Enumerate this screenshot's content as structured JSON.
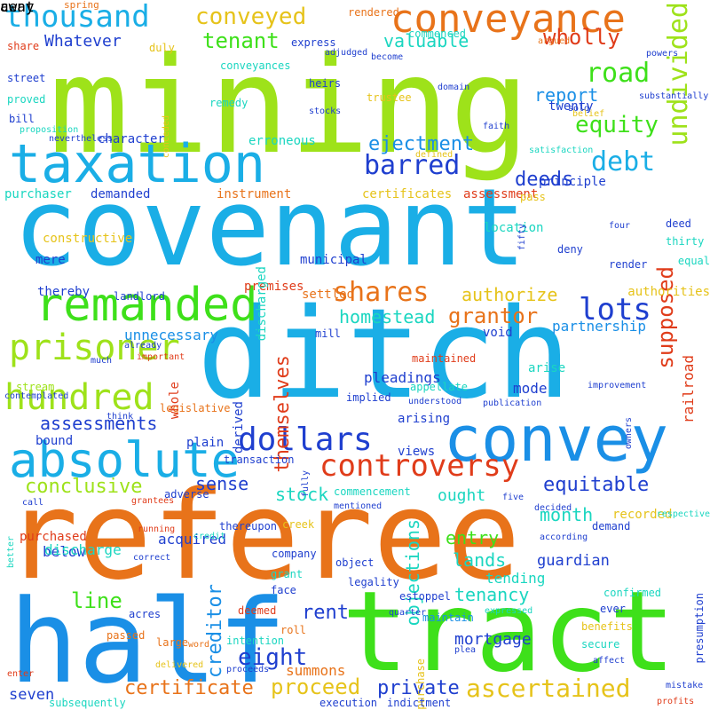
{
  "palette": {
    "cyan": "#1aaee6",
    "blue": "#1f3fcf",
    "lime": "#9ee21a",
    "green": "#3ee01a",
    "orange": "#e8731a",
    "red": "#e03c1a",
    "yellow": "#e6c31a",
    "teal": "#1ad6c0",
    "skyblue": "#1a8fe6"
  },
  "words": [
    {
      "text": "mining",
      "color": "lime"
    },
    {
      "text": "covenant",
      "color": "cyan"
    },
    {
      "text": "referee",
      "color": "orange"
    },
    {
      "text": "ditch",
      "color": "cyan"
    },
    {
      "text": "tract",
      "color": "green"
    },
    {
      "text": "half",
      "color": "skyblue"
    },
    {
      "text": "taxation",
      "color": "cyan"
    },
    {
      "text": "convey",
      "color": "skyblue"
    },
    {
      "text": "conveyance",
      "color": "orange"
    },
    {
      "text": "absolute",
      "color": "cyan"
    },
    {
      "text": "remanded",
      "color": "green"
    },
    {
      "text": "prisoner",
      "color": "lime"
    },
    {
      "text": "hundred",
      "color": "lime"
    },
    {
      "text": "controversy",
      "color": "red"
    },
    {
      "text": "dollars",
      "color": "blue"
    },
    {
      "text": "thousand",
      "color": "cyan"
    },
    {
      "text": "conveyed",
      "color": "yellow"
    },
    {
      "text": "barred",
      "color": "blue"
    },
    {
      "text": "undivided",
      "color": "lime"
    },
    {
      "text": "lots",
      "color": "blue"
    },
    {
      "text": "shares",
      "color": "orange"
    },
    {
      "text": "debt",
      "color": "cyan"
    },
    {
      "text": "road",
      "color": "green"
    },
    {
      "text": "equity",
      "color": "green"
    },
    {
      "text": "supposed",
      "color": "red"
    },
    {
      "text": "ascertained",
      "color": "yellow"
    },
    {
      "text": "proceed",
      "color": "yellow"
    },
    {
      "text": "eight",
      "color": "blue"
    },
    {
      "text": "private",
      "color": "blue"
    },
    {
      "text": "creditor",
      "color": "skyblue"
    },
    {
      "text": "assessments",
      "color": "blue"
    },
    {
      "text": "conclusive",
      "color": "lime"
    },
    {
      "text": "equitable",
      "color": "blue"
    },
    {
      "text": "certificate",
      "color": "orange"
    },
    {
      "text": "line",
      "color": "green"
    },
    {
      "text": "rent",
      "color": "blue"
    },
    {
      "text": "tenant",
      "color": "green"
    },
    {
      "text": "valuable",
      "color": "teal"
    },
    {
      "text": "wholly",
      "color": "red"
    },
    {
      "text": "Whatever",
      "color": "blue"
    },
    {
      "text": "ejectment",
      "color": "skyblue"
    },
    {
      "text": "deeds",
      "color": "blue"
    },
    {
      "text": "grantor",
      "color": "orange"
    },
    {
      "text": "authorize",
      "color": "yellow"
    },
    {
      "text": "report",
      "color": "skyblue"
    },
    {
      "text": "sense",
      "color": "blue"
    },
    {
      "text": "entry",
      "color": "green"
    },
    {
      "text": "lands",
      "color": "teal"
    },
    {
      "text": "month",
      "color": "teal"
    },
    {
      "text": "guardian",
      "color": "blue"
    },
    {
      "text": "tenancy",
      "color": "teal"
    },
    {
      "text": "objections",
      "color": "teal"
    },
    {
      "text": "themselves",
      "color": "red"
    },
    {
      "text": "partnership",
      "color": "skyblue"
    },
    {
      "text": "homestead",
      "color": "teal"
    },
    {
      "text": "ought",
      "color": "teal"
    },
    {
      "text": "stock",
      "color": "teal"
    },
    {
      "text": "summons",
      "color": "orange"
    },
    {
      "text": "mortgage",
      "color": "blue"
    },
    {
      "text": "seven",
      "color": "blue"
    },
    {
      "text": "unnecessary",
      "color": "skyblue"
    },
    {
      "text": "railroad",
      "color": "red"
    },
    {
      "text": "pleadings",
      "color": "blue"
    },
    {
      "text": "mode",
      "color": "blue"
    },
    {
      "text": "tending",
      "color": "teal"
    },
    {
      "text": "below",
      "color": "blue"
    },
    {
      "text": "acquired",
      "color": "blue"
    },
    {
      "text": "discharge",
      "color": "teal"
    },
    {
      "text": "purchased",
      "color": "red"
    },
    {
      "text": "principle",
      "color": "blue"
    },
    {
      "text": "twenty",
      "color": "blue"
    },
    {
      "text": "purchaser",
      "color": "teal"
    },
    {
      "text": "demanded",
      "color": "blue"
    },
    {
      "text": "instrument",
      "color": "orange"
    },
    {
      "text": "certificates",
      "color": "yellow"
    },
    {
      "text": "assessment",
      "color": "red"
    },
    {
      "text": "character",
      "color": "blue"
    },
    {
      "text": "erroneous",
      "color": "teal"
    },
    {
      "text": "commenced",
      "color": "teal"
    },
    {
      "text": "heirs",
      "color": "blue"
    },
    {
      "text": "trustee",
      "color": "yellow"
    },
    {
      "text": "express",
      "color": "blue"
    },
    {
      "text": "conveyances",
      "color": "teal"
    },
    {
      "text": "street",
      "color": "blue"
    },
    {
      "text": "proved",
      "color": "teal"
    },
    {
      "text": "remedy",
      "color": "teal"
    },
    {
      "text": "bill",
      "color": "blue"
    },
    {
      "text": "share",
      "color": "red"
    },
    {
      "text": "duly",
      "color": "yellow"
    },
    {
      "text": "rendered",
      "color": "orange"
    },
    {
      "text": "spring",
      "color": "orange"
    },
    {
      "text": "constructive",
      "color": "yellow"
    },
    {
      "text": "mere",
      "color": "blue"
    },
    {
      "text": "thereby",
      "color": "blue"
    },
    {
      "text": "location",
      "color": "teal"
    },
    {
      "text": "municipal",
      "color": "blue"
    },
    {
      "text": "premises",
      "color": "red"
    },
    {
      "text": "settled",
      "color": "orange"
    },
    {
      "text": "landlord",
      "color": "blue"
    },
    {
      "text": "discharged",
      "color": "teal"
    },
    {
      "text": "arise",
      "color": "teal"
    },
    {
      "text": "mill",
      "color": "blue"
    },
    {
      "text": "void",
      "color": "blue"
    },
    {
      "text": "maintained",
      "color": "red"
    },
    {
      "text": "appellate",
      "color": "teal"
    },
    {
      "text": "implied",
      "color": "blue"
    },
    {
      "text": "arising",
      "color": "blue"
    },
    {
      "text": "views",
      "color": "blue"
    },
    {
      "text": "plain",
      "color": "blue"
    },
    {
      "text": "bound",
      "color": "blue"
    },
    {
      "text": "legislative",
      "color": "orange"
    },
    {
      "text": "derived",
      "color": "blue"
    },
    {
      "text": "whole",
      "color": "red"
    },
    {
      "text": "stream",
      "color": "lime"
    },
    {
      "text": "transaction",
      "color": "blue"
    },
    {
      "text": "commencement",
      "color": "teal"
    },
    {
      "text": "adverse",
      "color": "blue"
    },
    {
      "text": "recorded",
      "color": "yellow"
    },
    {
      "text": "demand",
      "color": "blue"
    },
    {
      "text": "authorities",
      "color": "yellow"
    },
    {
      "text": "render",
      "color": "blue"
    },
    {
      "text": "deed",
      "color": "blue"
    },
    {
      "text": "thirty",
      "color": "teal"
    },
    {
      "text": "equal",
      "color": "teal"
    },
    {
      "text": "deny",
      "color": "blue"
    },
    {
      "text": "creek",
      "color": "yellow"
    },
    {
      "text": "thereupon",
      "color": "blue"
    },
    {
      "text": "company",
      "color": "blue"
    },
    {
      "text": "grant",
      "color": "teal"
    },
    {
      "text": "object",
      "color": "blue"
    },
    {
      "text": "legality",
      "color": "blue"
    },
    {
      "text": "face",
      "color": "blue"
    },
    {
      "text": "deemed",
      "color": "red"
    },
    {
      "text": "roll",
      "color": "orange"
    },
    {
      "text": "intention",
      "color": "teal"
    },
    {
      "text": "large",
      "color": "orange"
    },
    {
      "text": "passed",
      "color": "orange"
    },
    {
      "text": "acres",
      "color": "blue"
    },
    {
      "text": "purchase",
      "color": "yellow"
    },
    {
      "text": "maintain",
      "color": "skyblue"
    },
    {
      "text": "estoppel",
      "color": "blue"
    },
    {
      "text": "confirmed",
      "color": "teal"
    },
    {
      "text": "ever",
      "color": "blue"
    },
    {
      "text": "benefits",
      "color": "yellow"
    },
    {
      "text": "secure",
      "color": "teal"
    },
    {
      "text": "presumption",
      "color": "blue"
    },
    {
      "text": "subsequently",
      "color": "teal"
    },
    {
      "text": "execution",
      "color": "blue"
    },
    {
      "text": "indictment",
      "color": "blue"
    },
    {
      "text": "delivered",
      "color": "yellow"
    },
    {
      "text": "proceeds",
      "color": "blue"
    },
    {
      "text": "word",
      "color": "orange"
    },
    {
      "text": "profits",
      "color": "red"
    },
    {
      "text": "mistake",
      "color": "blue"
    },
    {
      "text": "affect",
      "color": "blue"
    },
    {
      "text": "respective",
      "color": "teal"
    },
    {
      "text": "owners",
      "color": "blue"
    },
    {
      "text": "improvement",
      "color": "blue"
    },
    {
      "text": "four",
      "color": "blue"
    },
    {
      "text": "fifty",
      "color": "blue"
    },
    {
      "text": "pass",
      "color": "yellow"
    },
    {
      "text": "satisfaction",
      "color": "teal"
    },
    {
      "text": "faith",
      "color": "blue"
    },
    {
      "text": "sold",
      "color": "blue"
    },
    {
      "text": "substantially",
      "color": "blue"
    },
    {
      "text": "domain",
      "color": "blue"
    },
    {
      "text": "become",
      "color": "blue"
    },
    {
      "text": "adjudged",
      "color": "blue"
    },
    {
      "text": "argued",
      "color": "orange"
    },
    {
      "text": "powers",
      "color": "blue"
    },
    {
      "text": "belief",
      "color": "yellow"
    },
    {
      "text": "stocks",
      "color": "blue"
    },
    {
      "text": "defined",
      "color": "yellow"
    },
    {
      "text": "nevertheless",
      "color": "blue"
    },
    {
      "text": "proposition",
      "color": "teal"
    },
    {
      "text": "conceded",
      "color": "yellow"
    },
    {
      "text": "already",
      "color": "blue"
    },
    {
      "text": "important",
      "color": "red"
    },
    {
      "text": "much",
      "color": "blue"
    },
    {
      "text": "contemplated",
      "color": "blue"
    },
    {
      "text": "think",
      "color": "blue"
    },
    {
      "text": "mentioned",
      "color": "blue"
    },
    {
      "text": "understood",
      "color": "blue"
    },
    {
      "text": "publication",
      "color": "blue"
    },
    {
      "text": "fully",
      "color": "blue"
    },
    {
      "text": "decided",
      "color": "blue"
    },
    {
      "text": "five",
      "color": "blue"
    },
    {
      "text": "call",
      "color": "blue"
    },
    {
      "text": "grantees",
      "color": "red"
    },
    {
      "text": "better",
      "color": "teal"
    },
    {
      "text": "running",
      "color": "red"
    },
    {
      "text": "credit",
      "color": "teal"
    },
    {
      "text": "correct",
      "color": "blue"
    },
    {
      "text": "according",
      "color": "blue"
    },
    {
      "text": "expressed",
      "color": "teal"
    },
    {
      "text": "quarter",
      "color": "blue"
    },
    {
      "text": "plea",
      "color": "blue"
    },
    {
      "text": "enter",
      "color": "red"
    },
    {
      "text": "away",
      "color": "teal"
    },
    {
      "text": "cent",
      "color": "blue"
    }
  ]
}
